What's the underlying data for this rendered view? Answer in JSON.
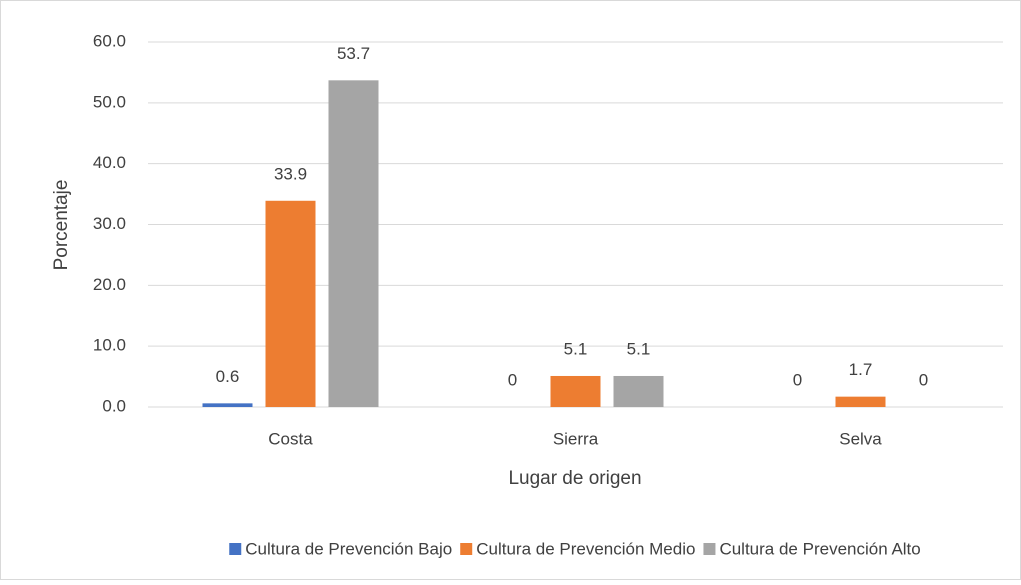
{
  "chart_data": {
    "type": "bar",
    "x_label": "Lugar de origen",
    "y_label": "Porcentaje",
    "categories": [
      "Costa",
      "Sierra",
      "Selva"
    ],
    "series": [
      {
        "name": "Cultura de Prevención Bajo",
        "color": "#4472c4",
        "values": [
          0.6,
          0,
          0
        ]
      },
      {
        "name": "Cultura de Prevención Medio",
        "color": "#ed7d31",
        "values": [
          33.9,
          5.1,
          1.7
        ]
      },
      {
        "name": "Cultura de Prevención Alto",
        "color": "#a5a5a5",
        "values": [
          53.7,
          5.1,
          0
        ]
      }
    ],
    "ylim": [
      0,
      60
    ],
    "yticks": [
      {
        "value": 0,
        "label": "0.0"
      },
      {
        "value": 10,
        "label": "10.0"
      },
      {
        "value": 20,
        "label": "20.0"
      },
      {
        "value": 30,
        "label": "30.0"
      },
      {
        "value": 40,
        "label": "40.0"
      },
      {
        "value": 50,
        "label": "50.0"
      },
      {
        "value": 60,
        "label": "60.0"
      }
    ],
    "grid": true,
    "legend": "bottom"
  }
}
